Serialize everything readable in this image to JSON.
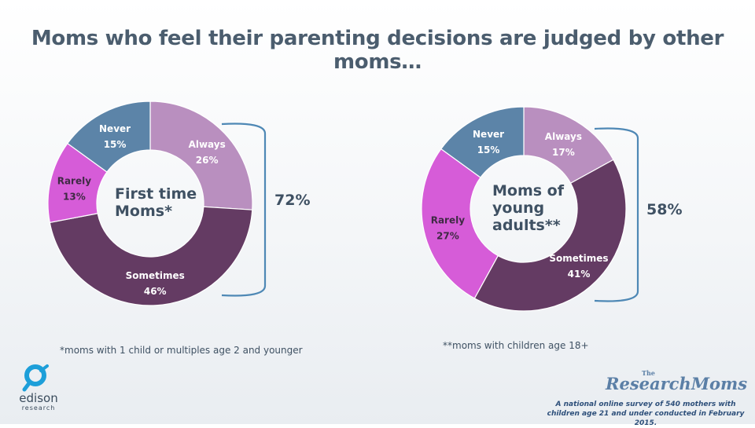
{
  "title": "Moms who feel their parenting decisions are judged by other moms…",
  "chart_data": [
    {
      "type": "pie",
      "center_label": "First time Moms*",
      "center_label_lines": [
        "First time",
        "Moms*"
      ],
      "slices": [
        {
          "label": "Always",
          "value": 26,
          "display": "26%",
          "color": "#b98fbf",
          "label_color": "#ffffff"
        },
        {
          "label": "Sometimes",
          "value": 46,
          "display": "46%",
          "color": "#643b63",
          "label_color": "#ffffff"
        },
        {
          "label": "Rarely",
          "value": 13,
          "display": "13%",
          "color": "#d65cd8",
          "label_color": "#3f2a44"
        },
        {
          "label": "Never",
          "value": 15,
          "display": "15%",
          "color": "#5c84a8",
          "label_color": "#ffffff"
        }
      ],
      "bracket_total": "72%",
      "footnote": "*moms with 1 child or multiples age 2 and younger"
    },
    {
      "type": "pie",
      "center_label": "Moms of young adults**",
      "center_label_lines": [
        "Moms of",
        "young",
        "adults**"
      ],
      "slices": [
        {
          "label": "Always",
          "value": 17,
          "display": "17%",
          "color": "#b98fbf",
          "label_color": "#ffffff"
        },
        {
          "label": "Sometimes",
          "value": 41,
          "display": "41%",
          "color": "#643b63",
          "label_color": "#ffffff"
        },
        {
          "label": "Rarely",
          "value": 27,
          "display": "27%",
          "color": "#d65cd8",
          "label_color": "#3f2a44"
        },
        {
          "label": "Never",
          "value": 15,
          "display": "15%",
          "color": "#5c84a8",
          "label_color": "#ffffff"
        }
      ],
      "bracket_total": "58%",
      "footnote": "**moms with children age 18+"
    }
  ],
  "logos": {
    "edison": "edison",
    "edison_sub": "research",
    "researchmoms_the": "The",
    "researchmoms": "ResearchMoms"
  },
  "source_note": "A national online survey of 540 mothers with children age 21 and under conducted in February 2015."
}
